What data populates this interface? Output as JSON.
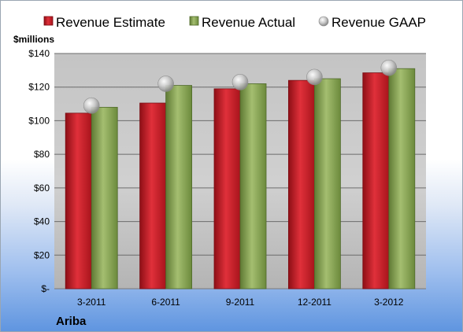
{
  "chart_data": {
    "type": "bar",
    "categories": [
      "3-2011",
      "6-2011",
      "9-2011",
      "12-2011",
      "3-2012"
    ],
    "series": [
      {
        "name": "Revenue Estimate",
        "kind": "bar",
        "color": "#c8202a",
        "values": [
          104.5,
          110.5,
          119,
          124,
          128.5
        ]
      },
      {
        "name": "Revenue Actual",
        "kind": "bar",
        "color": "#8aa65a",
        "values": [
          108,
          121,
          122,
          125,
          131
        ]
      },
      {
        "name": "Revenue GAAP",
        "kind": "marker",
        "color": "#c8c8c8",
        "values": [
          109,
          122,
          123,
          126,
          131.5
        ]
      }
    ],
    "ylabel": "$millions",
    "ylim": [
      0,
      140
    ],
    "yticks": [
      0,
      20,
      40,
      60,
      80,
      100,
      120,
      140
    ],
    "ytick_labels": [
      "$-",
      "$20",
      "$40",
      "$60",
      "$80",
      "$100",
      "$120",
      "$140"
    ],
    "grid": true,
    "legend_position": "top"
  },
  "company": "Ariba"
}
